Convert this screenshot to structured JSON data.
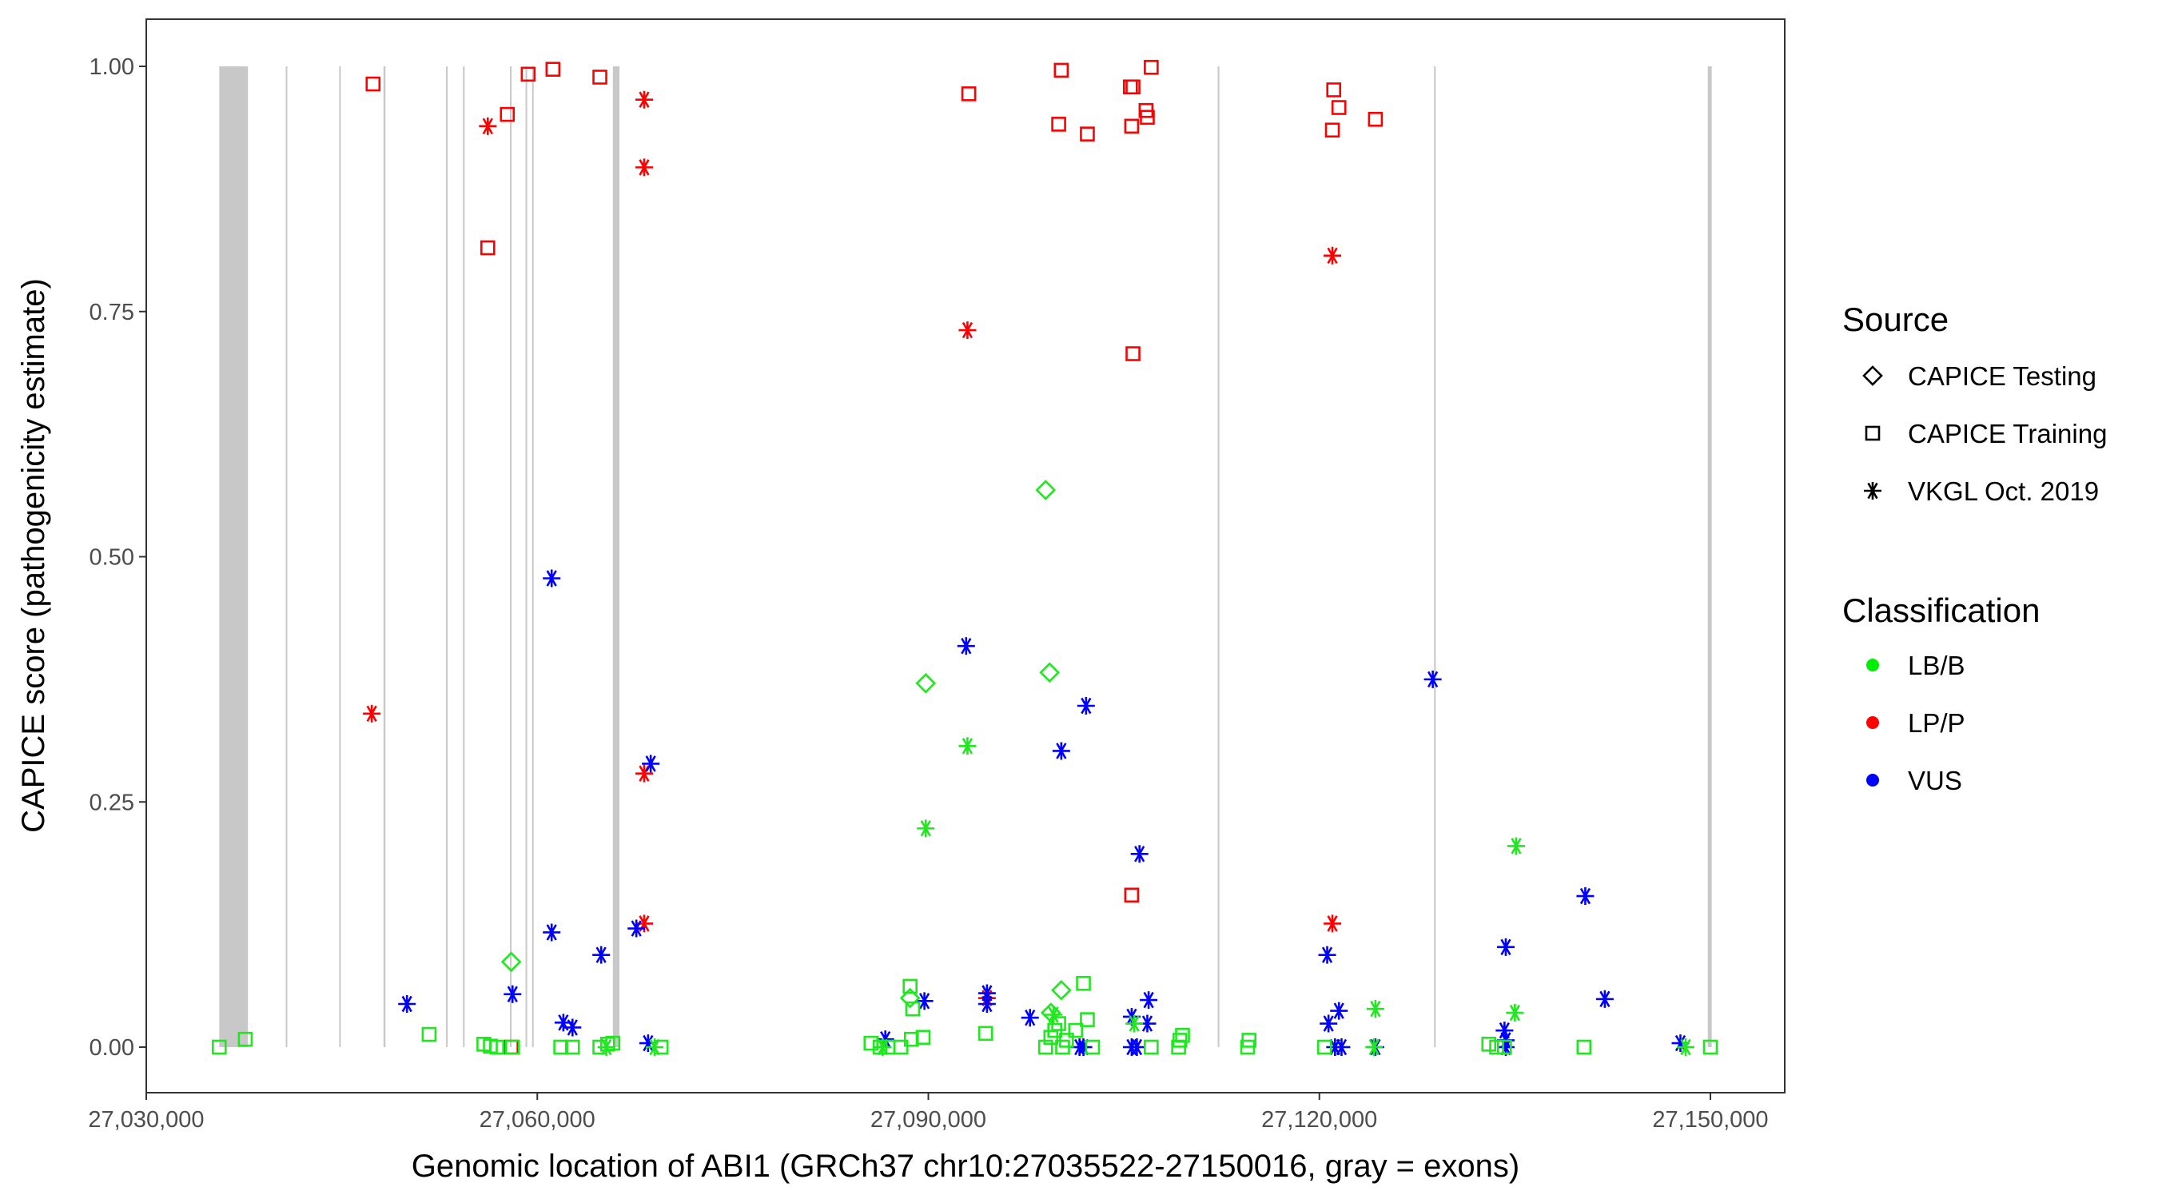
{
  "chart_data": {
    "type": "scatter",
    "xlabel": "Genomic location of ABI1 (GRCh37 chr10:27035522-27150016, gray = exons)",
    "ylabel": "CAPICE score (pathogenicity estimate)",
    "xlim": [
      27030000,
      27153000
    ],
    "ylim": [
      -0.045,
      1.047
    ],
    "xticks": [
      27030000,
      27060000,
      27090000,
      27120000,
      27150000
    ],
    "xtick_labels": [
      "27,030,000",
      "27,060,000",
      "27,090,000",
      "27,120,000",
      "27,150,000"
    ],
    "yticks": [
      0,
      0.25,
      0.5,
      0.75,
      1
    ],
    "ytick_labels": [
      "0.00",
      "0.25",
      "0.50",
      "0.75",
      "1.00"
    ],
    "grid": false,
    "exons": [
      [
        27035600,
        27037800
      ],
      [
        27040700,
        27040800
      ],
      [
        27044800,
        27044900
      ],
      [
        27048200,
        27048350
      ],
      [
        27053000,
        27053100
      ],
      [
        27054300,
        27054400
      ],
      [
        27057900,
        27058000
      ],
      [
        27059100,
        27059200
      ],
      [
        27059600,
        27059700
      ],
      [
        27065800,
        27066300
      ],
      [
        27112200,
        27112300
      ],
      [
        27128800,
        27128900
      ],
      [
        27149800,
        27150100
      ]
    ],
    "legend": {
      "placement": "right",
      "source_title": "Source",
      "source_items": [
        {
          "key": "testing",
          "label": "CAPICE Testing"
        },
        {
          "key": "training",
          "label": "CAPICE Training"
        },
        {
          "key": "vkgl",
          "label": "VKGL Oct. 2019"
        }
      ],
      "class_title": "Classification",
      "class_items": [
        {
          "key": "LB/B",
          "label": "LB/B",
          "color": "#00ee00"
        },
        {
          "key": "LP/P",
          "label": "LP/P",
          "color": "#ff0000"
        },
        {
          "key": "VUS",
          "label": "VUS",
          "color": "#0000ff"
        }
      ]
    },
    "colors": {
      "LB/B": "#1fe81f",
      "LP/P": "#ff0000",
      "VUS": "#0000ff",
      "exon": "#c8c8c8"
    },
    "points": [
      [
        27047400,
        0.982,
        "training",
        "LP/P"
      ],
      [
        27056200,
        0.815,
        "training",
        "LP/P"
      ],
      [
        27057700,
        0.951,
        "training",
        "LP/P"
      ],
      [
        27059300,
        0.992,
        "training",
        "LP/P"
      ],
      [
        27061200,
        0.997,
        "training",
        "LP/P"
      ],
      [
        27064800,
        0.989,
        "training",
        "LP/P"
      ],
      [
        27093100,
        0.972,
        "training",
        "LP/P"
      ],
      [
        27100200,
        0.996,
        "training",
        "LP/P"
      ],
      [
        27100000,
        0.941,
        "training",
        "LP/P"
      ],
      [
        27102200,
        0.931,
        "training",
        "LP/P"
      ],
      [
        27105500,
        0.979,
        "training",
        "LP/P"
      ],
      [
        27105700,
        0.979,
        "training",
        "LP/P"
      ],
      [
        27105600,
        0.939,
        "training",
        "LP/P"
      ],
      [
        27106700,
        0.955,
        "training",
        "LP/P"
      ],
      [
        27106800,
        0.948,
        "training",
        "LP/P"
      ],
      [
        27107100,
        0.999,
        "training",
        "LP/P"
      ],
      [
        27105700,
        0.707,
        "training",
        "LP/P"
      ],
      [
        27105600,
        0.155,
        "training",
        "LP/P"
      ],
      [
        27121100,
        0.976,
        "training",
        "LP/P"
      ],
      [
        27121000,
        0.935,
        "training",
        "LP/P"
      ],
      [
        27121500,
        0.958,
        "training",
        "LP/P"
      ],
      [
        27124300,
        0.946,
        "training",
        "LP/P"
      ],
      [
        27058000,
        0.0,
        "training",
        "LP/P"
      ],
      [
        27056200,
        0.939,
        "vkgl",
        "LP/P"
      ],
      [
        27068200,
        0.966,
        "vkgl",
        "LP/P"
      ],
      [
        27068200,
        0.897,
        "vkgl",
        "LP/P"
      ],
      [
        27093000,
        0.731,
        "vkgl",
        "LP/P"
      ],
      [
        27121000,
        0.807,
        "vkgl",
        "LP/P"
      ],
      [
        27047300,
        0.34,
        "vkgl",
        "LP/P"
      ],
      [
        27068200,
        0.279,
        "vkgl",
        "LP/P"
      ],
      [
        27068200,
        0.126,
        "vkgl",
        "LP/P"
      ],
      [
        27121000,
        0.126,
        "vkgl",
        "LP/P"
      ],
      [
        27094500,
        0.05,
        "vkgl",
        "LP/P"
      ],
      [
        27061100,
        0.478,
        "vkgl",
        "VUS"
      ],
      [
        27068700,
        0.289,
        "vkgl",
        "VUS"
      ],
      [
        27092900,
        0.409,
        "vkgl",
        "VUS"
      ],
      [
        27100200,
        0.302,
        "vkgl",
        "VUS"
      ],
      [
        27102100,
        0.348,
        "vkgl",
        "VUS"
      ],
      [
        27106200,
        0.197,
        "vkgl",
        "VUS"
      ],
      [
        27128700,
        0.375,
        "vkgl",
        "VUS"
      ],
      [
        27140400,
        0.154,
        "vkgl",
        "VUS"
      ],
      [
        27134300,
        0.102,
        "vkgl",
        "VUS"
      ],
      [
        27141900,
        0.049,
        "vkgl",
        "VUS"
      ],
      [
        27120600,
        0.094,
        "vkgl",
        "VUS"
      ],
      [
        27061100,
        0.117,
        "vkgl",
        "VUS"
      ],
      [
        27067600,
        0.121,
        "vkgl",
        "VUS"
      ],
      [
        27064900,
        0.094,
        "vkgl",
        "VUS"
      ],
      [
        27050000,
        0.044,
        "vkgl",
        "VUS"
      ],
      [
        27058100,
        0.054,
        "vkgl",
        "VUS"
      ],
      [
        27062000,
        0.025,
        "vkgl",
        "VUS"
      ],
      [
        27062700,
        0.02,
        "vkgl",
        "VUS"
      ],
      [
        27086700,
        0.008,
        "vkgl",
        "VUS"
      ],
      [
        27089700,
        0.047,
        "vkgl",
        "VUS"
      ],
      [
        27094500,
        0.055,
        "vkgl",
        "VUS"
      ],
      [
        27094500,
        0.044,
        "vkgl",
        "VUS"
      ],
      [
        27097800,
        0.03,
        "vkgl",
        "VUS"
      ],
      [
        27101600,
        0.0,
        "vkgl",
        "VUS"
      ],
      [
        27101900,
        0.0,
        "vkgl",
        "VUS"
      ],
      [
        27105600,
        0.031,
        "vkgl",
        "VUS"
      ],
      [
        27106900,
        0.048,
        "vkgl",
        "VUS"
      ],
      [
        27106800,
        0.024,
        "vkgl",
        "VUS"
      ],
      [
        27105600,
        0.0,
        "vkgl",
        "VUS"
      ],
      [
        27106000,
        0.0,
        "vkgl",
        "VUS"
      ],
      [
        27120700,
        0.024,
        "vkgl",
        "VUS"
      ],
      [
        27121500,
        0.037,
        "vkgl",
        "VUS"
      ],
      [
        27121200,
        0.0,
        "vkgl",
        "VUS"
      ],
      [
        27121700,
        0.0,
        "vkgl",
        "VUS"
      ],
      [
        27124300,
        0.0,
        "vkgl",
        "VUS"
      ],
      [
        27134200,
        0.017,
        "vkgl",
        "VUS"
      ],
      [
        27134300,
        0.007,
        "vkgl",
        "VUS"
      ],
      [
        27134300,
        0.0,
        "vkgl",
        "VUS"
      ],
      [
        27147700,
        0.004,
        "vkgl",
        "VUS"
      ],
      [
        27068500,
        0.004,
        "vkgl",
        "VUS"
      ],
      [
        27093000,
        0.307,
        "vkgl",
        "LB/B"
      ],
      [
        27089800,
        0.223,
        "vkgl",
        "LB/B"
      ],
      [
        27135100,
        0.205,
        "vkgl",
        "LB/B"
      ],
      [
        27124300,
        0.039,
        "vkgl",
        "LB/B"
      ],
      [
        27135000,
        0.035,
        "vkgl",
        "LB/B"
      ],
      [
        27099600,
        0.033,
        "vkgl",
        "LB/B"
      ],
      [
        27105800,
        0.024,
        "vkgl",
        "LB/B"
      ],
      [
        27124200,
        0.0,
        "vkgl",
        "LB/B"
      ],
      [
        27148100,
        0.0,
        "vkgl",
        "LB/B"
      ],
      [
        27069000,
        0.0,
        "vkgl",
        "LB/B"
      ],
      [
        27065300,
        0.0,
        "vkgl",
        "LB/B"
      ],
      [
        27086500,
        0.0,
        "vkgl",
        "LB/B"
      ],
      [
        27099000,
        0.568,
        "testing",
        "LB/B"
      ],
      [
        27089800,
        0.371,
        "testing",
        "LB/B"
      ],
      [
        27099300,
        0.382,
        "testing",
        "LB/B"
      ],
      [
        27058000,
        0.087,
        "testing",
        "LB/B"
      ],
      [
        27100200,
        0.058,
        "testing",
        "LB/B"
      ],
      [
        27088600,
        0.05,
        "testing",
        "LB/B"
      ],
      [
        27099400,
        0.035,
        "testing",
        "LB/B"
      ],
      [
        27035600,
        0.0,
        "training",
        "LB/B"
      ],
      [
        27037600,
        0.008,
        "training",
        "LB/B"
      ],
      [
        27051700,
        0.013,
        "training",
        "LB/B"
      ],
      [
        27055900,
        0.003,
        "training",
        "LB/B"
      ],
      [
        27056400,
        0.001,
        "training",
        "LB/B"
      ],
      [
        27056900,
        0.0,
        "training",
        "LB/B"
      ],
      [
        27058100,
        0.0,
        "training",
        "LB/B"
      ],
      [
        27061800,
        0.0,
        "training",
        "LB/B"
      ],
      [
        27062700,
        0.0,
        "training",
        "LB/B"
      ],
      [
        27064800,
        0.0,
        "training",
        "LB/B"
      ],
      [
        27065400,
        0.003,
        "training",
        "LB/B"
      ],
      [
        27065800,
        0.004,
        "training",
        "LB/B"
      ],
      [
        27069500,
        0.0,
        "training",
        "LB/B"
      ],
      [
        27085600,
        0.004,
        "training",
        "LB/B"
      ],
      [
        27086300,
        0.0,
        "training",
        "LB/B"
      ],
      [
        27086900,
        0.0,
        "training",
        "LB/B"
      ],
      [
        27087900,
        0.0,
        "training",
        "LB/B"
      ],
      [
        27088600,
        0.062,
        "training",
        "LB/B"
      ],
      [
        27088800,
        0.039,
        "training",
        "LB/B"
      ],
      [
        27088700,
        0.008,
        "training",
        "LB/B"
      ],
      [
        27089600,
        0.01,
        "training",
        "LB/B"
      ],
      [
        27094400,
        0.014,
        "training",
        "LB/B"
      ],
      [
        27099000,
        0.0,
        "training",
        "LB/B"
      ],
      [
        27099400,
        0.01,
        "training",
        "LB/B"
      ],
      [
        27099700,
        0.017,
        "training",
        "LB/B"
      ],
      [
        27100000,
        0.024,
        "training",
        "LB/B"
      ],
      [
        27100300,
        0.0,
        "training",
        "LB/B"
      ],
      [
        27100600,
        0.007,
        "training",
        "LB/B"
      ],
      [
        27101300,
        0.017,
        "training",
        "LB/B"
      ],
      [
        27101900,
        0.065,
        "training",
        "LB/B"
      ],
      [
        27102200,
        0.028,
        "training",
        "LB/B"
      ],
      [
        27102600,
        0.0,
        "training",
        "LB/B"
      ],
      [
        27107100,
        0.0,
        "training",
        "LB/B"
      ],
      [
        27109200,
        0.0,
        "training",
        "LB/B"
      ],
      [
        27109300,
        0.007,
        "training",
        "LB/B"
      ],
      [
        27109500,
        0.012,
        "training",
        "LB/B"
      ],
      [
        27114500,
        0.0,
        "training",
        "LB/B"
      ],
      [
        27114600,
        0.007,
        "training",
        "LB/B"
      ],
      [
        27120400,
        0.0,
        "training",
        "LB/B"
      ],
      [
        27133000,
        0.003,
        "training",
        "LB/B"
      ],
      [
        27133600,
        0.0,
        "training",
        "LB/B"
      ],
      [
        27134200,
        0.0,
        "training",
        "LB/B"
      ],
      [
        27140300,
        0.0,
        "training",
        "LB/B"
      ],
      [
        27150000,
        0.0,
        "training",
        "LB/B"
      ]
    ]
  }
}
